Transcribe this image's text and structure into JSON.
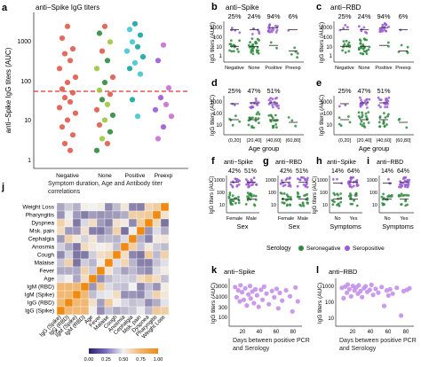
{
  "panel_labels": {
    "a": "a",
    "b": "b",
    "c": "c",
    "d": "d",
    "e": "e",
    "f": "f",
    "g": "g",
    "h": "h",
    "i": "i",
    "j": "j",
    "k": "k",
    "l": "l"
  },
  "legend": {
    "title": "Serology",
    "items": [
      {
        "label": "Seronegative",
        "color": "#2e8b3e"
      },
      {
        "label": "Seropositive",
        "color": "#9b59d6"
      }
    ]
  },
  "chart_data": [
    {
      "id": "a",
      "type": "scatter",
      "title": "anti−Spike IgG titers",
      "ylabel": "anti−Spike IgG titers (AUC)",
      "xlabel": "",
      "categories": [
        "Negative",
        "None",
        "Positive",
        "Preexp"
      ],
      "yscale": "log",
      "ylim": [
        1,
        5000
      ],
      "yticks": [
        "1",
        "10",
        "100",
        "1000"
      ],
      "cutoff": 80,
      "series": [
        {
          "category": "Negative",
          "colors": [
            "#e05a4e"
          ],
          "values": [
            3000,
            1500,
            800,
            600,
            400,
            250,
            150,
            110,
            75,
            60,
            45,
            35,
            25,
            18,
            12,
            8,
            5,
            3,
            2
          ]
        },
        {
          "category": "None",
          "colors": [
            "#e05a4e",
            "#2e8b3e",
            "#9bc63c"
          ],
          "values": [
            3000,
            2000,
            1200,
            700,
            400,
            250,
            150,
            110,
            70,
            55,
            40,
            30,
            22,
            16,
            12,
            9,
            6,
            4,
            3,
            2
          ]
        },
        {
          "category": "Positive",
          "colors": [
            "#15a6a0",
            "#3fc6d2"
          ],
          "values": [
            3500,
            2500,
            1800,
            1200,
            900,
            700,
            500,
            350,
            250,
            180,
            40,
            15
          ]
        },
        {
          "category": "Preexp",
          "colors": [
            "#c86fd0",
            "#9b59d6"
          ],
          "values": [
            1000,
            400,
            80,
            45,
            30,
            22,
            15,
            8,
            4
          ]
        }
      ]
    },
    {
      "id": "b",
      "type": "scatter",
      "title": "anti−Spike",
      "ylabel": "IgG titers (AUC)",
      "categories": [
        "Negative",
        "None",
        "Positive",
        "Preexp"
      ],
      "percentages": [
        "25%",
        "24%",
        "94%",
        "6%"
      ],
      "yticks": [
        "1",
        "10",
        "100",
        "1000"
      ]
    },
    {
      "id": "c",
      "type": "scatter",
      "title": "anti−RBD",
      "ylabel": "IgG titers (AUC)",
      "categories": [
        "Negative",
        "None",
        "Positive",
        "Preexp"
      ],
      "percentages": [
        "25%",
        "24%",
        "94%",
        "6%"
      ],
      "yticks": [
        "1",
        "10",
        "100",
        "1000"
      ]
    },
    {
      "id": "d",
      "type": "scatter",
      "title": "",
      "ylabel": "IgG titers (AUC)",
      "xlabel": "Age group",
      "categories": [
        "(0,20]",
        "(20,40]",
        "(40,60]",
        "(60,80]"
      ],
      "percentages": [
        "25%",
        "47%",
        "51%",
        ""
      ],
      "yticks": [
        "10",
        "100",
        "1000"
      ]
    },
    {
      "id": "e",
      "type": "scatter",
      "title": "",
      "ylabel": "IgG titers (AUC)",
      "xlabel": "Age group",
      "categories": [
        "(0,20]",
        "(20,40]",
        "(40,60]",
        "(60,80]"
      ],
      "percentages": [
        "25%",
        "47%",
        "51%",
        ""
      ],
      "yticks": [
        "10",
        "100",
        "1000"
      ]
    },
    {
      "id": "f",
      "type": "scatter",
      "title": "anti−Spike",
      "ylabel": "IgG titers (AUC)",
      "xlabel": "Sex",
      "categories": [
        "Female",
        "Male"
      ],
      "percentages": [
        "42%",
        "51%"
      ],
      "yticks": [
        "10",
        "100",
        "1000"
      ]
    },
    {
      "id": "g",
      "type": "scatter",
      "title": "anti−RBD",
      "ylabel": "",
      "xlabel": "Sex",
      "categories": [
        "Female",
        "Male"
      ],
      "percentages": [
        "42%",
        "51%"
      ],
      "yticks": [
        "10",
        "100",
        "1000"
      ]
    },
    {
      "id": "h",
      "type": "scatter",
      "title": "anti−Spike",
      "ylabel": "IgG titers (AUC)",
      "xlabel": "Symptoms",
      "categories": [
        "No",
        "Yes"
      ],
      "percentages": [
        "14%",
        "64%"
      ],
      "yticks": [
        "10",
        "100",
        "1000"
      ]
    },
    {
      "id": "i",
      "type": "scatter",
      "title": "anti−RBD",
      "ylabel": "",
      "xlabel": "Symptoms",
      "categories": [
        "No",
        "Yes"
      ],
      "percentages": [
        "14%",
        "64%"
      ],
      "yticks": [
        "10",
        "100",
        "1000"
      ]
    },
    {
      "id": "j",
      "type": "heatmap",
      "title": "Symptom duration, Age and Antibody titer correlations",
      "rows": [
        "Weight Loss",
        "Pharyngitis",
        "Dyspnea",
        "Msk. pain",
        "Cephalgia",
        "Anosmia",
        "Cough",
        "Malaise",
        "Fever",
        "Age",
        "IgM (RBD)",
        "IgM (Spike)",
        "IgG (RBD)",
        "IgG (Spike)"
      ],
      "columns": [
        "IgG (Spike)",
        "IgG (RBD)",
        "IgM (Spike)",
        "IgM (RBD)",
        "Age",
        "Fever",
        "Malaise",
        "Cough",
        "Anosmia",
        "Cephalgia",
        "Msk. pain",
        "Dyspnea",
        "Pharyngitis",
        "Weight Loss"
      ],
      "colorbar": {
        "label": "τ",
        "ticks": [
          "0.00",
          "0.25",
          "0.50",
          "0.75",
          "1.00"
        ]
      }
    },
    {
      "id": "k",
      "type": "scatter",
      "title": "anti−Spike",
      "ylabel": "IgG titers (AUC)",
      "xlabel": "Days between positive PCR and Serology",
      "xticks": [
        "20",
        "40",
        "60",
        "80"
      ],
      "yticks": [
        "100",
        "300",
        "1000",
        "3000"
      ],
      "x": [
        5,
        7,
        9,
        11,
        12,
        14,
        16,
        18,
        20,
        22,
        24,
        25,
        27,
        29,
        31,
        33,
        35,
        38,
        40,
        42,
        45,
        48,
        52,
        55,
        58,
        60,
        62,
        65,
        70,
        75,
        78,
        82,
        85
      ],
      "y": [
        2500,
        900,
        1800,
        600,
        3000,
        1500,
        700,
        2200,
        400,
        1200,
        2800,
        800,
        1600,
        500,
        2000,
        1100,
        350,
        1900,
        700,
        2600,
        1300,
        450,
        1700,
        900,
        2100,
        300,
        1400,
        650,
        1800,
        1000,
        220,
        2400,
        600
      ]
    },
    {
      "id": "l",
      "type": "scatter",
      "title": "anti−RBD",
      "ylabel": "IgG titers (AUC)",
      "xlabel": "Days between positive PCR and Serology",
      "xticks": [
        "20",
        "40",
        "60",
        "80"
      ],
      "yticks": [
        "10",
        "100",
        "1000"
      ],
      "x": [
        5,
        7,
        9,
        11,
        12,
        14,
        16,
        18,
        20,
        22,
        24,
        25,
        27,
        29,
        31,
        33,
        35,
        38,
        40,
        42,
        45,
        48,
        52,
        55,
        58,
        60,
        62,
        65,
        70,
        75,
        78,
        82,
        85
      ],
      "y": [
        1500,
        300,
        1800,
        700,
        2500,
        1200,
        400,
        2000,
        1000,
        1600,
        600,
        2200,
        900,
        350,
        1400,
        1900,
        800,
        1100,
        2400,
        500,
        1300,
        700,
        1700,
        90,
        1000,
        450,
        1200,
        600,
        1500,
        20,
        900,
        1100,
        1400
      ]
    }
  ]
}
